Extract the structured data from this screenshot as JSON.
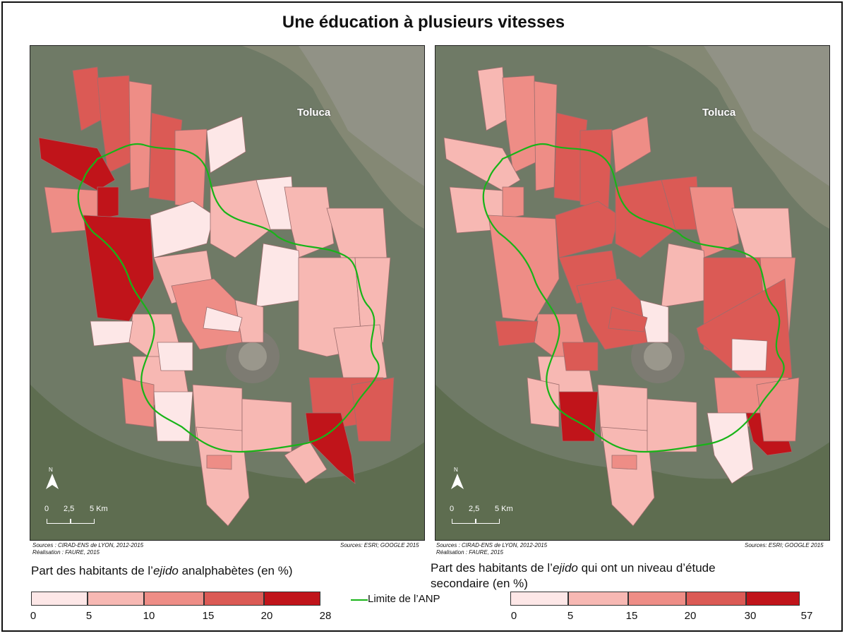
{
  "title": "Une éducation à plusieurs vitesses",
  "city_label": "Toluca",
  "scale_labels": [
    "0",
    "2,5",
    "5 Km"
  ],
  "north_label": "N",
  "colors": {
    "class1": "#fde7e7",
    "class2": "#f7b8b3",
    "class3": "#ee8d86",
    "class4": "#db5a55",
    "class5": "#c0141a",
    "anp_line": "#18b418",
    "background": "#6f7a66"
  },
  "left_map": {
    "sources": "Sources : CIRAD-ENS de LYON, 2012-2015",
    "realisation": "Réalisation : FAURE, 2015",
    "imagery_source": "Sources: ESRI; GOOGLE 2015",
    "legend_title_pre": "Part des habitants de l’",
    "legend_title_em": "ejido",
    "legend_title_post": " analphabètes (en %)",
    "breaks": [
      "0",
      "5",
      "10",
      "15",
      "20",
      "28"
    ]
  },
  "right_map": {
    "sources": "Sources : CIRAD-ENS de LYON, 2012-2015",
    "realisation": "Réalisation : FAURE, 2015",
    "imagery_source": "Sources: ESRI; GOOGLE 2015",
    "legend_title_pre": "Part des habitants de l’",
    "legend_title_em": "ejido",
    "legend_title_post": " qui ont un niveau d’étude secondaire (en %)",
    "breaks": [
      "0",
      "5",
      "15",
      "20",
      "30",
      "57"
    ]
  },
  "anp_legend_label": "Limite de l’ANP"
}
